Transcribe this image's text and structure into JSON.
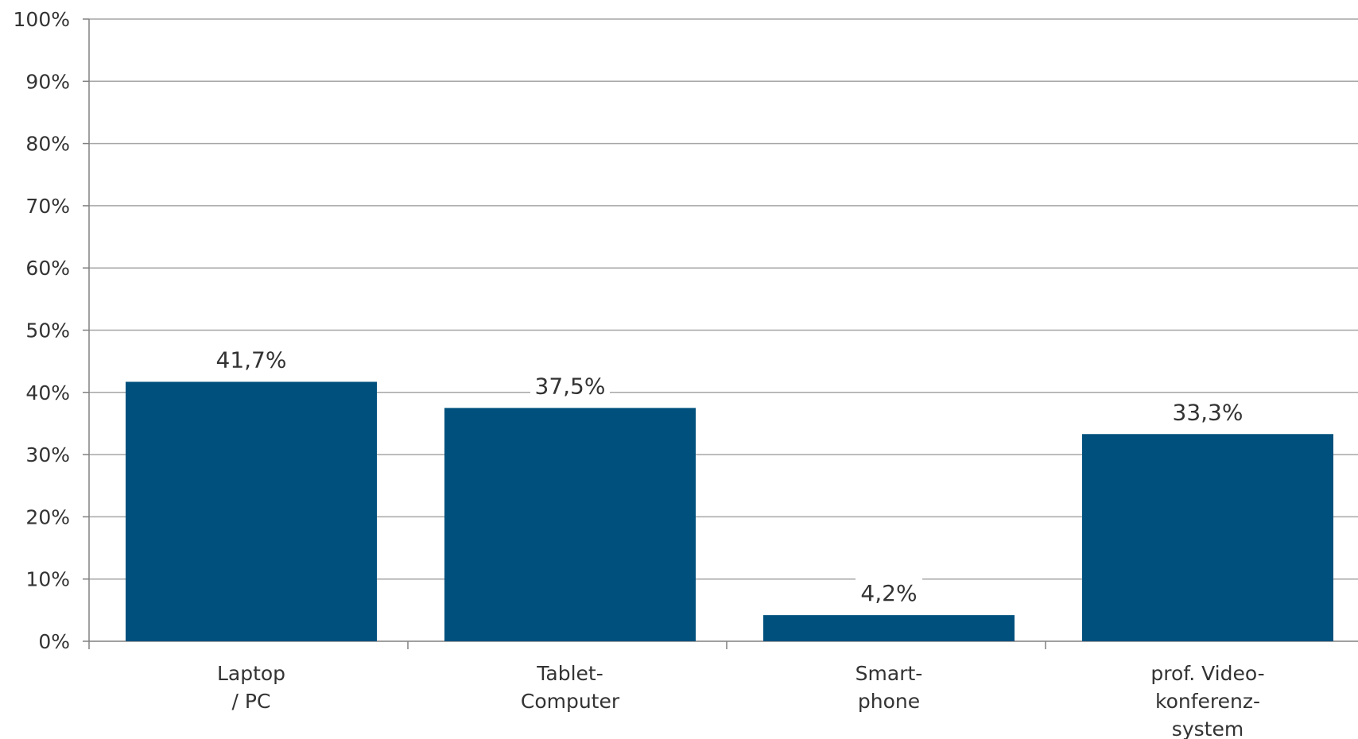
{
  "chart_data": {
    "type": "bar",
    "categories": [
      [
        "Laptop",
        "/ PC"
      ],
      [
        "Tablet-",
        "Computer"
      ],
      [
        "Smart-",
        "phone"
      ],
      [
        "prof. Video-",
        "konferenz-",
        "system"
      ]
    ],
    "values": [
      41.7,
      37.5,
      4.2,
      33.3
    ],
    "value_labels": [
      "41,7%",
      "37,5%",
      "4,2%",
      "33,3%"
    ],
    "y_ticks": [
      "0%",
      "10%",
      "20%",
      "30%",
      "40%",
      "50%",
      "60%",
      "70%",
      "80%",
      "90%",
      "100%"
    ],
    "ylim": [
      0,
      100
    ],
    "grid": true,
    "legend": "none",
    "title": "",
    "xlabel": "",
    "ylabel": "",
    "bar_color": "#00507d"
  }
}
